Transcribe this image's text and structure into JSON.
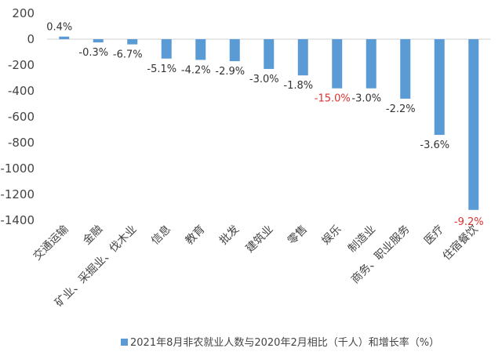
{
  "chart_data": {
    "type": "bar",
    "title": "",
    "xlabel": "",
    "ylabel": "",
    "ylim": [
      -1400,
      200
    ],
    "yticks": [
      200,
      0,
      -200,
      -400,
      -600,
      -800,
      -1000,
      -1200,
      -1400
    ],
    "ytick_labels": [
      "200",
      "0",
      "-200",
      "-400",
      "-600",
      "-800",
      "-1000",
      "-1200",
      "-1400"
    ],
    "grid": false,
    "legend_position": "bottom",
    "categories": [
      "交通运输",
      "金融",
      "矿业、采掘业、伐木业",
      "信息",
      "教育",
      "批发",
      "建筑业",
      "零售",
      "娱乐",
      "制造业",
      "商务、职业服务",
      "医疗",
      "住宿餐饮"
    ],
    "series": [
      {
        "name": "2021年8月非农就业人数与2020年2月相比（千人）和增长率（%）",
        "color": "#5b9bd5",
        "values": [
          20,
          -25,
          -40,
          -150,
          -160,
          -170,
          -230,
          -280,
          -380,
          -380,
          -460,
          -740,
          -1320
        ],
        "labels": [
          "0.4%",
          "-0.3%",
          "-6.7%",
          "-5.1%",
          "-4.2%",
          "-2.9%",
          "-3.0%",
          "-1.8%",
          "-15.0%",
          "-3.0%",
          "-2.2%",
          "-3.6%",
          "-9.2%"
        ],
        "label_colors": [
          "#333333",
          "#333333",
          "#333333",
          "#333333",
          "#333333",
          "#333333",
          "#333333",
          "#333333",
          "#e0302f",
          "#333333",
          "#333333",
          "#333333",
          "#e0302f"
        ]
      }
    ]
  }
}
